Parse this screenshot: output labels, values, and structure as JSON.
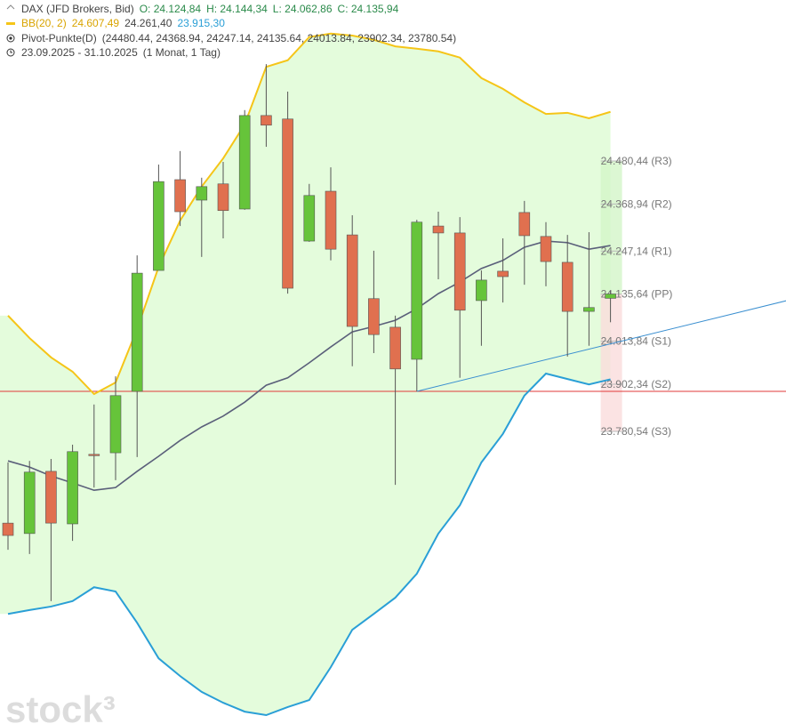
{
  "chart_data": {
    "type": "candlestick",
    "info": {
      "title": "DAX (JFD Brokers, Bid)",
      "ohlc": [
        "O: 24.124,84",
        "H: 24.144,34",
        "L: 24.062,86",
        "C: 24.135,94"
      ],
      "bb_name": "BB(20, 2)",
      "bb_values": [
        "24.607,49",
        "24.261,40",
        "23.915,30"
      ],
      "pivot_name": "Pivot-Punkte(D)",
      "pivot_values": "(24480.44,  24368.94,  24247.14,  24135.64,  24013.84,  23902.34,  23780.54)",
      "period": "23.09.2025 - 31.10.2025",
      "interval": "(1 Monat, 1 Tag)"
    },
    "categories": [
      null,
      null,
      null,
      null,
      null,
      null,
      null,
      null,
      null,
      null,
      null,
      null,
      null,
      null,
      null,
      null,
      null,
      null,
      null,
      null,
      null,
      null,
      null,
      null,
      null,
      null,
      null,
      null,
      null
    ],
    "open": [
      23543,
      23516,
      23677,
      23541,
      23721,
      23725,
      23884,
      24197,
      24432,
      24379,
      24421,
      24356,
      24598,
      24589,
      24273,
      24402,
      24289,
      24124,
      24050,
      23967,
      24312,
      24294,
      24119,
      24195,
      24347,
      24285,
      24218,
      24091,
      24124.84
    ],
    "high": [
      23700,
      23704,
      23709,
      23746,
      23850,
      23923,
      24236,
      24471,
      24506,
      24437,
      24478,
      24612,
      24731,
      24660,
      24421,
      24464,
      24340,
      24248,
      24080,
      24328,
      24349,
      24335,
      24197,
      24280,
      24377,
      24322,
      24289,
      24296,
      24144.34
    ],
    "low": [
      23474,
      23463,
      23341,
      23497,
      23635,
      23654,
      23714,
      24200,
      24312,
      24232,
      24280,
      24354,
      24517,
      24137,
      24271,
      24223,
      23949,
      23983,
      23642,
      23884,
      24174,
      23919,
      24002,
      24114,
      24160,
      24156,
      23974,
      24002,
      24062.86
    ],
    "close": [
      23511,
      23675,
      23543,
      23728,
      23719,
      23873,
      24190,
      24427,
      24349,
      24414,
      24352,
      24598,
      24573,
      24151,
      24391,
      24252,
      24052,
      24031,
      23942,
      24322,
      24294,
      24094,
      24172,
      24181,
      24287,
      24220,
      24091,
      24101,
      24135.94
    ],
    "up_color": "#66c43a",
    "down_color": "#e0704f",
    "bands": {
      "fill": "#e4fcdc",
      "upper": {
        "color": "#f5c518",
        "values": [
          24080,
          24022,
          23972,
          23935,
          23877,
          23907,
          24045,
          24206,
          24326,
          24414,
          24487,
          24575,
          24724,
          24741,
          24801,
          24810,
          24805,
          24794,
          24777,
          24771,
          24764,
          24748,
          24695,
          24667,
          24632,
          24602,
          24605,
          24591,
          24607.49
        ]
      },
      "middle": {
        "color": "#5a5f7a",
        "values": [
          23704,
          23688,
          23665,
          23647,
          23628,
          23635,
          23677,
          23716,
          23757,
          23792,
          23820,
          23856,
          23900,
          23919,
          23958,
          23999,
          24038,
          24052,
          24068,
          24098,
          24137,
          24167,
          24202,
          24223,
          24257,
          24273,
          24269,
          24252,
          24261.4
        ]
      },
      "lower": {
        "color": "#2a9fd6",
        "values": [
          23308,
          23318,
          23327,
          23341,
          23377,
          23366,
          23285,
          23193,
          23147,
          23106,
          23078,
          23055,
          23046,
          23067,
          23085,
          23170,
          23267,
          23308,
          23350,
          23412,
          23516,
          23589,
          23700,
          23774,
          23873,
          23930,
          23916,
          23902,
          23915.3
        ]
      }
    },
    "pivots": [
      {
        "value": 24480.44,
        "label": "24.480,44 (R3)"
      },
      {
        "value": 24368.94,
        "label": "24.368,94 (R2)"
      },
      {
        "value": 24247.14,
        "label": "24.247,14 (R1)"
      },
      {
        "value": 24135.64,
        "label": "24.135,64 (PP)"
      },
      {
        "value": 24013.84,
        "label": "24.013,84 (S1)"
      },
      {
        "value": 23902.34,
        "label": "23.902,34 (S2)"
      },
      {
        "value": 23780.54,
        "label": "23.780,54 (S3)"
      }
    ],
    "pivot_colors": {
      "above": "#d3f5c8",
      "below": "#fadcdc",
      "line": "#b9b9b9",
      "label": "#777777"
    },
    "hline": {
      "value": 23884,
      "color": "#e03a3a"
    },
    "trendline": {
      "x": [
        19,
        36.2
      ],
      "y": [
        23884,
        24119
      ],
      "color": "#3a8fd0"
    },
    "ylim": [
      23023,
      24897
    ],
    "watermark": "stock³"
  }
}
